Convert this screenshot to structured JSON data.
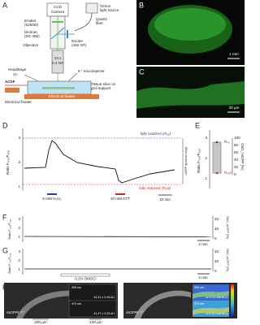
{
  "panels": {
    "a": {
      "label": "A",
      "ccd": "CCD",
      "camera": "Camera",
      "xenon": "Xenon",
      "light_source": "light source",
      "emitter": "Emitter",
      "emitter_spec": "(525/50)",
      "quartz": "Quartz",
      "fiber": "fiber",
      "dichroic": "Dichroic",
      "dichroic_spec": "(DC 495)",
      "exciter": "Exciter",
      "exciter_spec": "(492 SP)",
      "objective": "Objective",
      "magnification": "10 x",
      "na": "0.3 NA",
      "headstage": "Headstage",
      "vc": "Vc",
      "microinjector": "K⁺ microinjector",
      "slice": "Tissue slice on",
      "grid": "grid support",
      "acsf": "ACSF",
      "heater": "Electrical heater",
      "heater_left": "Electrical heater"
    },
    "b": {
      "label": "B",
      "scale": "1 mm"
    },
    "c": {
      "label": "C",
      "scale": "20 µm"
    },
    "d": {
      "label": "D",
      "ylabel": "Ratio F₄₀₅/F₄₈₈",
      "yticks": [
        "3",
        "2",
        "1"
      ],
      "oxidized": "fully oxidized (Rₒₓ)",
      "range": "roGFP dynamic range",
      "reduced": "fully reduced (Rᵣₑd)",
      "h2o2": "5 mM H₂O₂",
      "dtt": "10 mM DTT",
      "scale": "10 min"
    },
    "e": {
      "label": "E",
      "ylabel": "Ratio F₄₀₅/F₄₈₈",
      "yticks": [
        "3",
        "2",
        "1"
      ],
      "y2ticks": [
        "100",
        "80",
        "60",
        "40",
        "20",
        "0"
      ],
      "y2label": "OxD_roGFP (%)",
      "rox": "Rₒₓ",
      "rred": "Rᵣₑd"
    },
    "f": {
      "label": "F",
      "ylabel": "Ratio F₄₀₅/F₄₈₈",
      "yticks": [
        "3",
        "2",
        "1"
      ],
      "y2ticks": [
        "40",
        "20",
        "0"
      ],
      "y2label": "OxD_roGFP (%)",
      "scale": "2 min"
    },
    "g": {
      "label": "G",
      "ylabel": "Ratio F₄₀₅/F₄₈₈",
      "yticks": [
        "3",
        "2",
        "1"
      ],
      "y2ticks": [
        "40",
        "20",
        "0"
      ],
      "y2label": "OxD_roGFP (%)",
      "treatment": "0.2% DMSO",
      "scale": "2 min"
    },
    "h": {
      "label": "H",
      "left": {
        "genotype": "roGFPc⁺/⁺",
        "wl1": "395 nm",
        "v1": "44.41 ± 2.26 AU",
        "wl2": "470 nm",
        "v2": "41.47 ± 2.09 AU",
        "scale1": "200 µm",
        "scale2": "100 µm"
      },
      "right": {
        "genotype": "roGFPc⁺/⁻",
        "wl1": "395 nm",
        "v1": "1272.74 ± 260.56 AU",
        "wl2": "470 nm",
        "v2": "1371.12 ± 265.49 AU"
      }
    }
  }
}
